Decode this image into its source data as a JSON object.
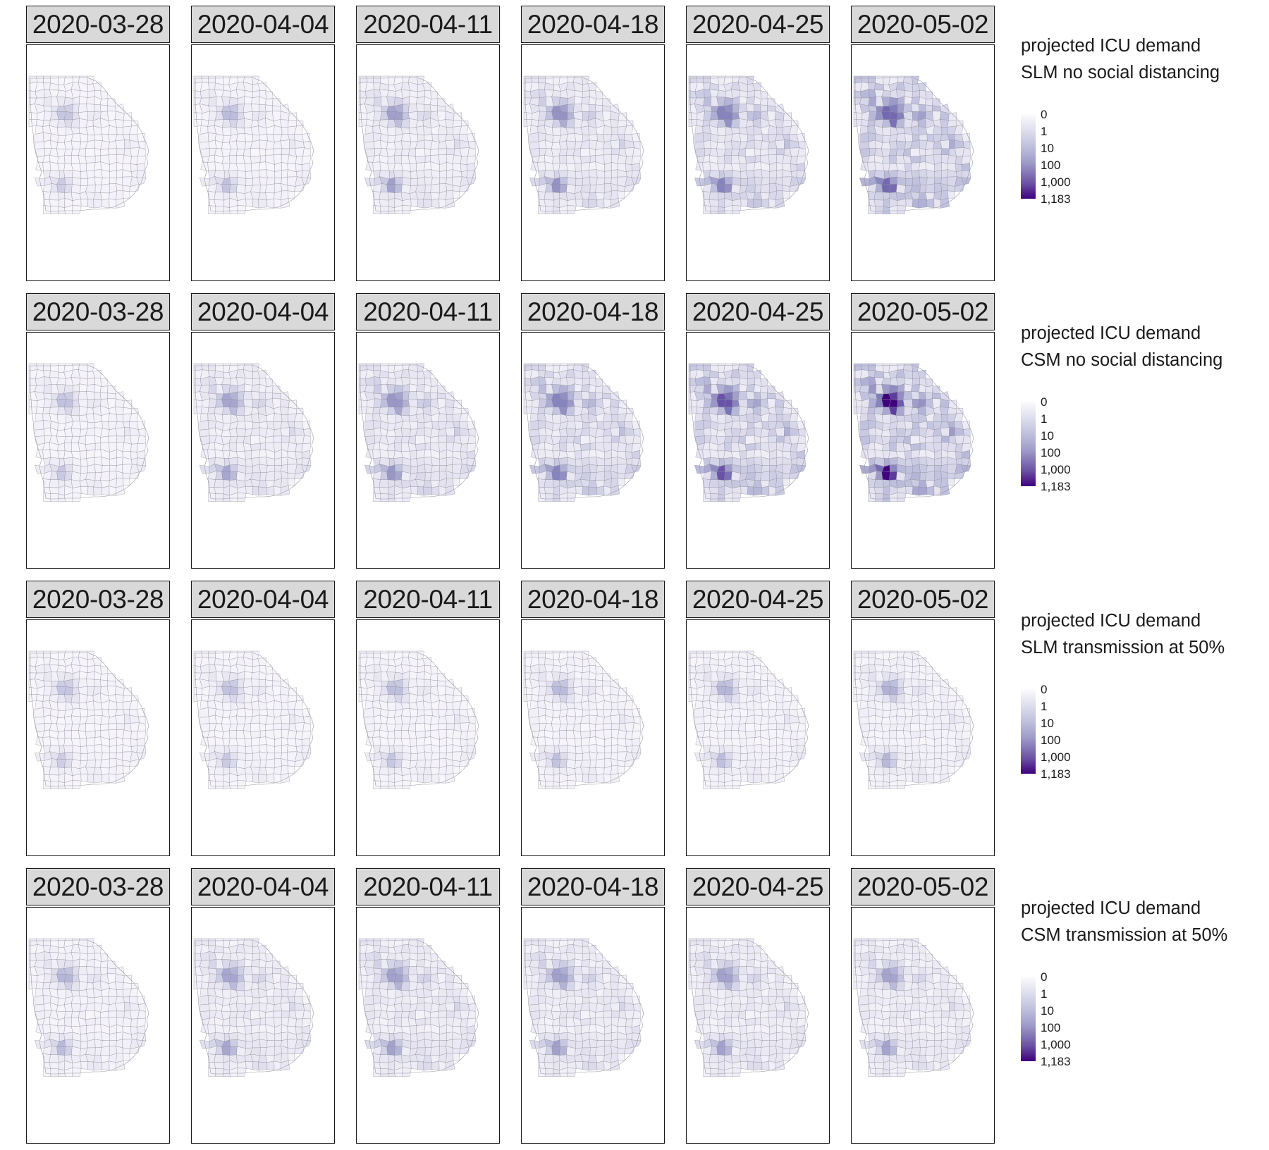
{
  "dates": [
    "2020-03-28",
    "2020-04-04",
    "2020-04-11",
    "2020-04-18",
    "2020-04-25",
    "2020-05-02"
  ],
  "scenarios": [
    {
      "title_line1": "projected ICU demand",
      "title_line2": "SLM no social distancing",
      "level_by_week": [
        0.1,
        0.13,
        0.25,
        0.35,
        0.5,
        0.68
      ],
      "max_intensity_by_week": [
        0.4,
        0.45,
        0.58,
        0.64,
        0.72,
        0.8
      ]
    },
    {
      "title_line1": "projected ICU demand",
      "title_line2": "CSM no social distancing",
      "level_by_week": [
        0.12,
        0.3,
        0.4,
        0.52,
        0.62,
        0.72
      ],
      "max_intensity_by_week": [
        0.42,
        0.55,
        0.62,
        0.72,
        0.85,
        1.0
      ]
    },
    {
      "title_line1": "projected ICU demand",
      "title_line2": "SLM transmission at 50%",
      "level_by_week": [
        0.1,
        0.11,
        0.12,
        0.13,
        0.14,
        0.17
      ],
      "max_intensity_by_week": [
        0.4,
        0.42,
        0.44,
        0.46,
        0.48,
        0.5
      ]
    },
    {
      "title_line1": "projected ICU demand",
      "title_line2": "CSM transmission at 50%",
      "level_by_week": [
        0.16,
        0.3,
        0.34,
        0.34,
        0.32,
        0.3
      ],
      "max_intensity_by_week": [
        0.48,
        0.55,
        0.57,
        0.58,
        0.57,
        0.56
      ]
    }
  ],
  "legend": {
    "ticks": [
      "0",
      "1",
      "10",
      "100",
      "1,000",
      "1,183"
    ],
    "color_low": "#fcfbfd",
    "color_high": "#3f007d"
  },
  "colors": {
    "strip_fill": "#d9d9d9",
    "border": "#1a1a1a",
    "county_stroke": "#8c8c99"
  }
}
